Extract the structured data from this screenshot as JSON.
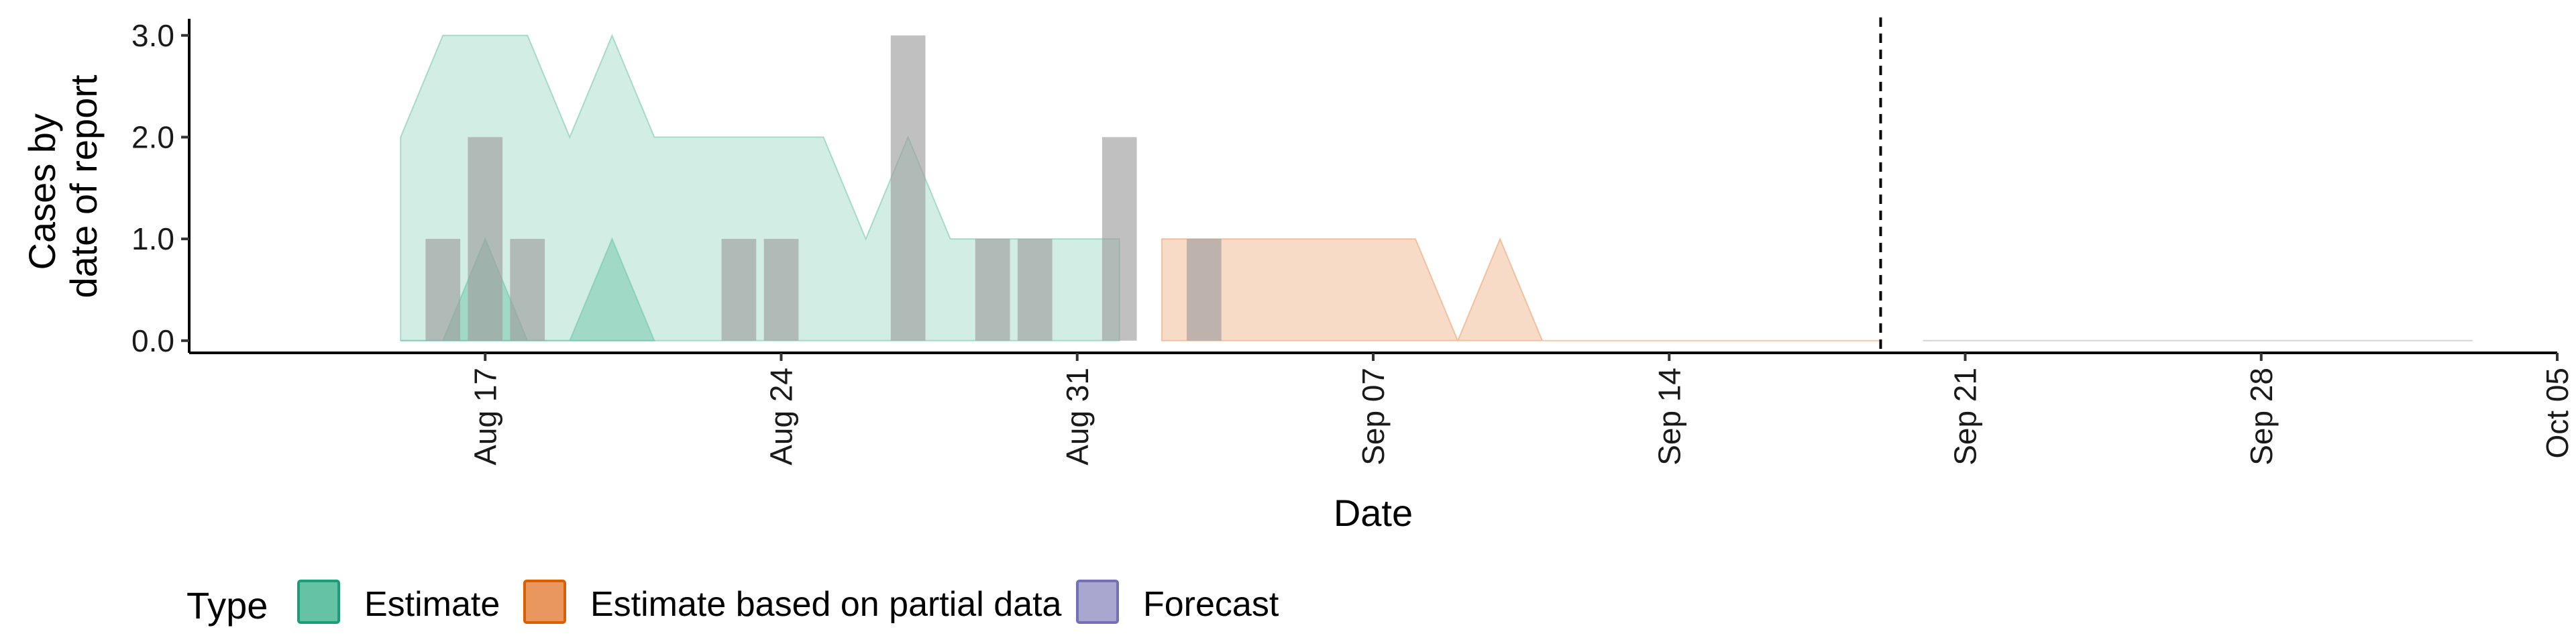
{
  "chart_data": {
    "type": "area",
    "title": "",
    "xlabel": "Date",
    "ylabel_lines": [
      "Cases by",
      "date of report"
    ],
    "x_range": [
      "2020-08-10",
      "2020-10-05"
    ],
    "y_range": [
      -0.12,
      3.15
    ],
    "y_ticks": [
      {
        "value": 0,
        "label": "0.0"
      },
      {
        "value": 1,
        "label": "1.0"
      },
      {
        "value": 2,
        "label": "2.0"
      },
      {
        "value": 3,
        "label": "3.0"
      }
    ],
    "x_ticks": [
      {
        "date": "2020-08-17",
        "label": "Aug 17"
      },
      {
        "date": "2020-08-24",
        "label": "Aug 24"
      },
      {
        "date": "2020-08-31",
        "label": "Aug 31"
      },
      {
        "date": "2020-09-07",
        "label": "Sep 07"
      },
      {
        "date": "2020-09-14",
        "label": "Sep 14"
      },
      {
        "date": "2020-09-21",
        "label": "Sep 21"
      },
      {
        "date": "2020-09-28",
        "label": "Sep 28"
      },
      {
        "date": "2020-10-05",
        "label": "Oct 05"
      }
    ],
    "vline_date": "2020-09-19",
    "grid": false,
    "legend": {
      "position": "bottom",
      "title": "Type",
      "items": [
        {
          "label": "Estimate",
          "fill": "#66C2A5",
          "stroke": "#1B9E77"
        },
        {
          "label": "Estimate based on partial data",
          "fill": "#E9975F",
          "stroke": "#D95F02"
        },
        {
          "label": "Forecast",
          "fill": "#A9A6D0",
          "stroke": "#7570B3"
        }
      ]
    },
    "reported_bars": {
      "color": "#9E9E9E",
      "points": [
        {
          "date": "2020-08-16",
          "value": 1
        },
        {
          "date": "2020-08-17",
          "value": 2
        },
        {
          "date": "2020-08-18",
          "value": 1
        },
        {
          "date": "2020-08-23",
          "value": 1
        },
        {
          "date": "2020-08-24",
          "value": 1
        },
        {
          "date": "2020-08-27",
          "value": 3
        },
        {
          "date": "2020-08-29",
          "value": 1
        },
        {
          "date": "2020-08-30",
          "value": 1
        },
        {
          "date": "2020-09-01",
          "value": 2
        },
        {
          "date": "2020-09-03",
          "value": 1
        }
      ]
    },
    "ribbons": [
      {
        "type": "Estimate",
        "fill": "#66C2A5",
        "opacity": 0.3,
        "points": [
          {
            "date": "2020-08-15",
            "lower": 0,
            "upper": 2
          },
          {
            "date": "2020-08-16",
            "lower": 0,
            "upper": 3
          },
          {
            "date": "2020-08-17",
            "lower": 0,
            "upper": 3
          },
          {
            "date": "2020-08-18",
            "lower": 0,
            "upper": 3
          },
          {
            "date": "2020-08-19",
            "lower": 0,
            "upper": 2
          },
          {
            "date": "2020-08-20",
            "lower": 0,
            "upper": 3
          },
          {
            "date": "2020-08-21",
            "lower": 0,
            "upper": 2
          },
          {
            "date": "2020-08-22",
            "lower": 0,
            "upper": 2
          },
          {
            "date": "2020-08-23",
            "lower": 0,
            "upper": 2
          },
          {
            "date": "2020-08-24",
            "lower": 0,
            "upper": 2
          },
          {
            "date": "2020-08-25",
            "lower": 0,
            "upper": 2
          },
          {
            "date": "2020-08-26",
            "lower": 0,
            "upper": 1
          },
          {
            "date": "2020-08-27",
            "lower": 0,
            "upper": 2
          },
          {
            "date": "2020-08-28",
            "lower": 0,
            "upper": 1
          },
          {
            "date": "2020-08-29",
            "lower": 0,
            "upper": 1
          },
          {
            "date": "2020-08-30",
            "lower": 0,
            "upper": 1
          },
          {
            "date": "2020-08-31",
            "lower": 0,
            "upper": 1
          },
          {
            "date": "2020-09-01",
            "lower": 0,
            "upper": 1
          }
        ]
      },
      {
        "type": "Estimate",
        "fill": "#66C2A5",
        "opacity": 0.45,
        "points": [
          {
            "date": "2020-08-15",
            "lower": 0,
            "upper": 0
          },
          {
            "date": "2020-08-16",
            "lower": 0,
            "upper": 0
          },
          {
            "date": "2020-08-17",
            "lower": 0,
            "upper": 1
          },
          {
            "date": "2020-08-18",
            "lower": 0,
            "upper": 0
          },
          {
            "date": "2020-08-19",
            "lower": 0,
            "upper": 0
          },
          {
            "date": "2020-08-20",
            "lower": 0,
            "upper": 1
          },
          {
            "date": "2020-08-21",
            "lower": 0,
            "upper": 0
          }
        ]
      },
      {
        "type": "Estimate based on partial data",
        "fill": "#E9975F",
        "opacity": 0.35,
        "points": [
          {
            "date": "2020-09-02",
            "lower": 0,
            "upper": 1
          },
          {
            "date": "2020-09-03",
            "lower": 0,
            "upper": 1
          },
          {
            "date": "2020-09-04",
            "lower": 0,
            "upper": 1
          },
          {
            "date": "2020-09-05",
            "lower": 0,
            "upper": 1
          },
          {
            "date": "2020-09-06",
            "lower": 0,
            "upper": 1
          },
          {
            "date": "2020-09-07",
            "lower": 0,
            "upper": 1
          },
          {
            "date": "2020-09-08",
            "lower": 0,
            "upper": 1
          },
          {
            "date": "2020-09-09",
            "lower": 0,
            "upper": 0
          },
          {
            "date": "2020-09-10",
            "lower": 0,
            "upper": 1
          },
          {
            "date": "2020-09-11",
            "lower": 0,
            "upper": 0
          },
          {
            "date": "2020-09-12",
            "lower": 0,
            "upper": 0
          },
          {
            "date": "2020-09-13",
            "lower": 0,
            "upper": 0
          },
          {
            "date": "2020-09-14",
            "lower": 0,
            "upper": 0
          },
          {
            "date": "2020-09-15",
            "lower": 0,
            "upper": 0
          },
          {
            "date": "2020-09-16",
            "lower": 0,
            "upper": 0
          },
          {
            "date": "2020-09-17",
            "lower": 0,
            "upper": 0
          },
          {
            "date": "2020-09-18",
            "lower": 0,
            "upper": 0
          },
          {
            "date": "2020-09-19",
            "lower": 0,
            "upper": 0
          }
        ]
      },
      {
        "type": "Forecast",
        "fill": "#A9A6D0",
        "opacity": 0.35,
        "points": [
          {
            "date": "2020-09-20",
            "lower": 0,
            "upper": 0
          },
          {
            "date": "2020-09-25",
            "lower": 0,
            "upper": 0
          },
          {
            "date": "2020-09-30",
            "lower": 0,
            "upper": 0
          },
          {
            "date": "2020-10-03",
            "lower": 0,
            "upper": 0
          }
        ]
      }
    ]
  }
}
